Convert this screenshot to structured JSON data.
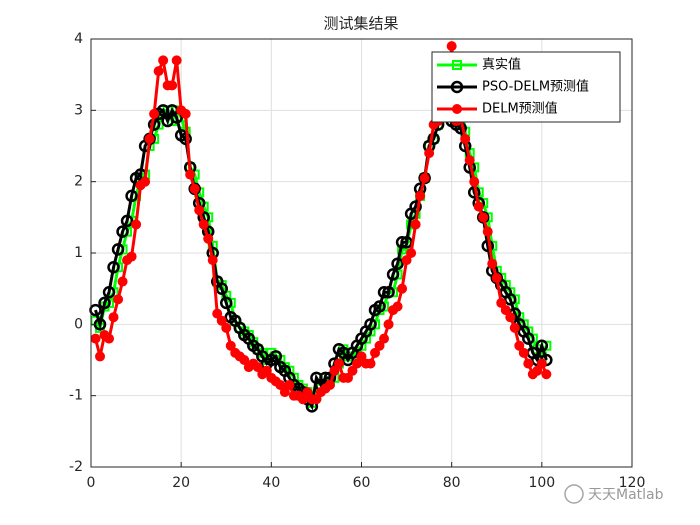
{
  "chart_data": {
    "type": "line",
    "title": "测试集结果",
    "x": [
      1,
      2,
      3,
      4,
      5,
      6,
      7,
      8,
      9,
      10,
      11,
      12,
      13,
      14,
      15,
      16,
      17,
      18,
      19,
      20,
      21,
      22,
      23,
      24,
      25,
      26,
      27,
      28,
      29,
      30,
      31,
      32,
      33,
      34,
      35,
      36,
      37,
      38,
      39,
      40,
      41,
      42,
      43,
      44,
      45,
      46,
      47,
      48,
      49,
      50,
      51,
      52,
      53,
      54,
      55,
      56,
      57,
      58,
      59,
      60,
      61,
      62,
      63,
      64,
      65,
      66,
      67,
      68,
      69,
      70,
      71,
      72,
      73,
      74,
      75,
      76,
      77,
      78,
      79,
      80,
      81,
      82,
      83,
      84,
      85,
      86,
      87,
      88,
      89,
      90,
      91,
      92,
      93,
      94,
      95,
      96,
      97,
      98,
      99,
      100,
      101
    ],
    "series": [
      {
        "name": "真实值",
        "color": "#00ff00",
        "marker": "square",
        "values": [
          0.05,
          -0.05,
          0.25,
          0.3,
          0.45,
          0.8,
          1.05,
          1.3,
          1.45,
          1.8,
          2.05,
          2.1,
          2.5,
          2.6,
          2.8,
          2.95,
          3.0,
          2.85,
          3.0,
          2.9,
          2.7,
          2.2,
          2.1,
          1.85,
          1.65,
          1.5,
          1.1,
          0.6,
          0.55,
          0.4,
          0.3,
          0.05,
          -0.05,
          -0.1,
          -0.15,
          -0.25,
          -0.35,
          -0.4,
          -0.5,
          -0.4,
          -0.45,
          -0.5,
          -0.6,
          -0.65,
          -0.75,
          -0.85,
          -0.9,
          -0.95,
          -1.1,
          -1.0,
          -0.9,
          -0.75,
          -0.8,
          -0.75,
          -0.55,
          -0.35,
          -0.45,
          -0.45,
          -0.4,
          -0.3,
          -0.2,
          -0.1,
          0.0,
          0.2,
          0.25,
          0.45,
          0.45,
          0.7,
          1.05,
          1.1,
          1.4,
          1.55,
          1.8,
          2.05,
          2.5,
          2.6,
          2.8,
          2.9,
          3.0,
          2.9,
          2.85,
          2.8,
          2.7,
          2.4,
          2.2,
          1.85,
          1.7,
          1.5,
          1.1,
          0.75,
          0.65,
          0.55,
          0.45,
          0.35,
          0.1,
          0.0,
          -0.1,
          -0.2,
          -0.35,
          -0.45,
          -0.3
        ]
      },
      {
        "name": "PSO-DELM预测值",
        "color": "#000000",
        "marker": "circle-open",
        "values": [
          0.2,
          0.0,
          0.3,
          0.45,
          0.8,
          1.05,
          1.3,
          1.45,
          1.8,
          2.05,
          2.1,
          2.5,
          2.6,
          2.8,
          2.95,
          3.0,
          2.85,
          3.0,
          2.9,
          2.65,
          2.6,
          2.2,
          1.9,
          1.7,
          1.5,
          1.3,
          1.0,
          0.6,
          0.5,
          0.3,
          0.1,
          0.05,
          -0.05,
          -0.15,
          -0.2,
          -0.3,
          -0.35,
          -0.45,
          -0.55,
          -0.5,
          -0.45,
          -0.6,
          -0.65,
          -0.75,
          -0.85,
          -0.9,
          -0.95,
          -1.05,
          -1.15,
          -0.75,
          -0.85,
          -0.75,
          -0.75,
          -0.55,
          -0.35,
          -0.4,
          -0.5,
          -0.4,
          -0.3,
          -0.2,
          -0.1,
          0.0,
          0.2,
          0.25,
          0.45,
          0.45,
          0.7,
          0.85,
          1.15,
          1.15,
          1.55,
          1.65,
          1.9,
          2.05,
          2.5,
          2.6,
          2.8,
          2.95,
          3.0,
          2.85,
          2.8,
          2.75,
          2.5,
          2.2,
          1.85,
          1.7,
          1.5,
          1.1,
          0.75,
          0.65,
          0.55,
          0.45,
          0.35,
          0.15,
          0.0,
          -0.1,
          -0.2,
          -0.4,
          -0.5,
          -0.3,
          -0.5
        ]
      },
      {
        "name": "DELM预测值",
        "color": "#ff0000",
        "marker": "circle-filled",
        "values": [
          -0.2,
          -0.45,
          -0.15,
          -0.2,
          0.1,
          0.35,
          0.6,
          0.9,
          0.95,
          1.4,
          1.95,
          2.0,
          2.6,
          2.95,
          3.55,
          3.7,
          3.35,
          3.35,
          3.7,
          3.0,
          2.95,
          2.1,
          1.9,
          1.6,
          1.4,
          1.2,
          0.9,
          0.15,
          0.05,
          -0.05,
          -0.3,
          -0.4,
          -0.45,
          -0.5,
          -0.6,
          -0.55,
          -0.6,
          -0.7,
          -0.65,
          -0.75,
          -0.8,
          -0.85,
          -0.95,
          -0.85,
          -1.0,
          -1.0,
          -1.05,
          -0.95,
          -1.05,
          -1.05,
          -0.95,
          -0.9,
          -0.85,
          -0.65,
          -0.55,
          -0.75,
          -0.75,
          -0.65,
          -0.55,
          -0.45,
          -0.55,
          -0.55,
          -0.4,
          -0.3,
          -0.2,
          0.0,
          0.2,
          0.25,
          0.5,
          0.9,
          1.0,
          1.4,
          1.8,
          2.05,
          2.4,
          2.8,
          2.85,
          2.95,
          3.0,
          3.9,
          2.85,
          2.9,
          2.6,
          2.3,
          2.0,
          1.65,
          1.5,
          1.3,
          0.85,
          0.65,
          0.3,
          0.2,
          0.1,
          -0.05,
          -0.3,
          -0.4,
          -0.55,
          -0.7,
          -0.65,
          -0.55,
          -0.7
        ]
      }
    ],
    "xlim": [
      0,
      120
    ],
    "xticks": [
      0,
      20,
      40,
      60,
      80,
      100,
      120
    ],
    "ylim": [
      -2,
      4
    ],
    "yticks": [
      -2,
      -1,
      0,
      1,
      2,
      3,
      4
    ],
    "grid": true,
    "legend": "northeast",
    "watermark": "天天Matlab"
  }
}
